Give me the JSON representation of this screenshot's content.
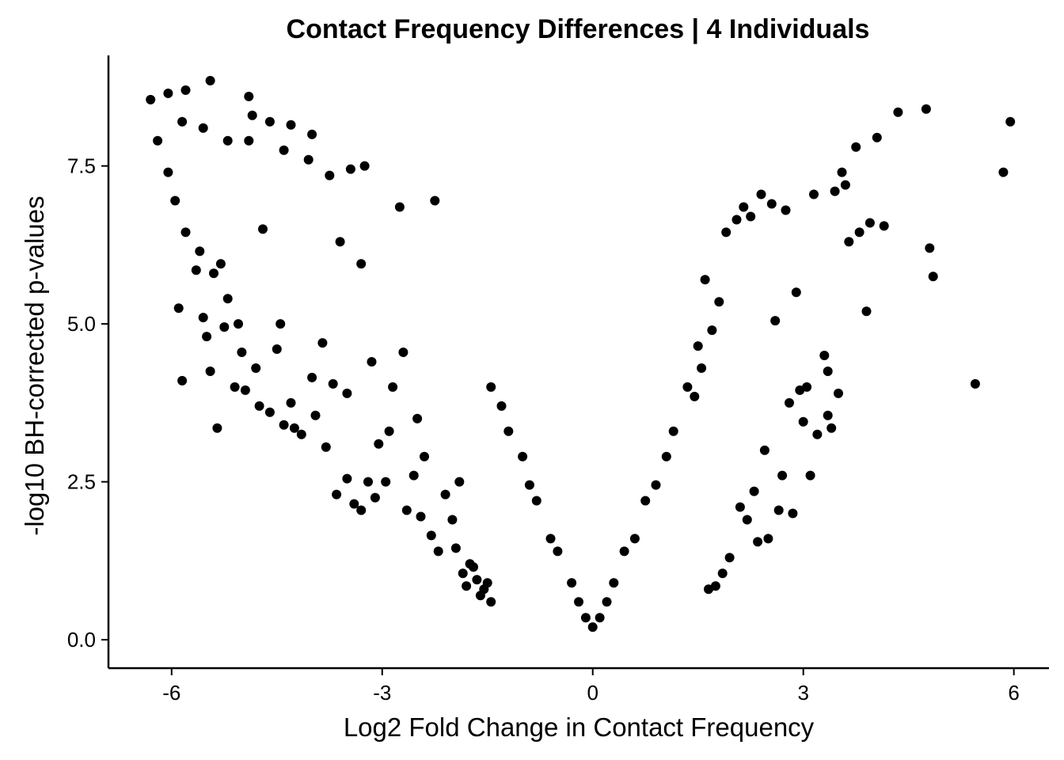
{
  "chart_data": {
    "type": "scatter",
    "title": "Contact Frequency Differences | 4 Individuals",
    "xlabel": "Log2 Fold Change in Contact Frequency",
    "ylabel": "-log10 BH-corrected p-values",
    "xlim": [
      -6.9,
      6.5
    ],
    "ylim": [
      -0.45,
      9.25
    ],
    "x_ticks": [
      {
        "value": -6,
        "label": "-6"
      },
      {
        "value": -3,
        "label": "-3"
      },
      {
        "value": 0,
        "label": "0"
      },
      {
        "value": 3,
        "label": "3"
      },
      {
        "value": 6,
        "label": "6"
      }
    ],
    "y_ticks": [
      {
        "value": 0,
        "label": "0.0"
      },
      {
        "value": 2.5,
        "label": "2.5"
      },
      {
        "value": 5,
        "label": "5.0"
      },
      {
        "value": 7.5,
        "label": "7.5"
      }
    ],
    "point_color": "#000000",
    "grid": false,
    "legend": "none",
    "series": [
      {
        "x": [
          -6.3,
          -6.05,
          -5.8,
          -5.45,
          -6.2,
          -5.85,
          -5.55,
          -5.2,
          -4.9,
          -4.85,
          -4.6,
          -4.3,
          -4.0,
          -6.05,
          -5.95,
          -5.8,
          -5.6,
          -5.65,
          -5.4,
          -5.3,
          -5.9,
          -5.55,
          -5.25,
          -5.05,
          -5.45,
          -5.85,
          -5.35,
          -5.1,
          -4.95,
          -5.5,
          -4.75,
          -4.4,
          -4.15,
          -3.8,
          -3.5,
          -3.2,
          -4.6,
          -4.3,
          -3.65,
          -3.3,
          -3.4,
          -3.1,
          -2.65,
          -2.45,
          -2.95,
          -2.3,
          -1.75,
          -1.85,
          -1.65,
          -2.2,
          -1.55,
          -1.95,
          -1.7,
          -5.0,
          -4.5,
          -4.0,
          -3.7,
          -3.5,
          -3.95,
          -4.25,
          -4.8,
          -5.2,
          -4.45,
          -3.85,
          -4.7,
          -3.3,
          -3.6,
          -2.7,
          -2.5,
          -2.85,
          -3.15,
          -2.1,
          -1.9,
          -2.4,
          -2.9,
          -3.05,
          -2.55,
          -1.6,
          -1.45,
          -2.0,
          -1.8,
          -1.5,
          -4.05,
          -3.25,
          -3.75,
          -2.75,
          -4.9,
          -4.4,
          -3.45,
          -2.25,
          4.35,
          4.75,
          5.95,
          5.85,
          5.45,
          4.8,
          4.85,
          3.55,
          3.75,
          4.05,
          3.6,
          3.95,
          4.15,
          3.8,
          3.65,
          3.9,
          3.3,
          3.35,
          3.05,
          3.1,
          2.95,
          3.0,
          2.8,
          2.85,
          2.65,
          2.7,
          3.4,
          3.2,
          3.35,
          3.5,
          2.9,
          2.6,
          2.45,
          2.3,
          2.1,
          2.2,
          2.5,
          2.35,
          1.95,
          1.85,
          1.75,
          1.65,
          2.4,
          2.15,
          2.55,
          2.05,
          2.25,
          1.9,
          2.75,
          3.15,
          3.45,
          1.55,
          1.5,
          1.7,
          1.8,
          1.6,
          -0.3,
          -0.2,
          -0.1,
          0.0,
          0.1,
          0.2,
          0.3,
          -0.6,
          0.6,
          -0.9,
          0.9,
          -1.2,
          1.15,
          -1.45,
          1.35,
          -1.3,
          1.45,
          -1.0,
          1.05,
          -0.8,
          0.75,
          -0.5,
          0.45
        ],
        "y": [
          8.55,
          8.65,
          8.7,
          8.85,
          7.9,
          8.2,
          8.1,
          7.9,
          8.6,
          8.3,
          8.2,
          8.15,
          8.0,
          7.4,
          6.95,
          6.45,
          6.15,
          5.85,
          5.8,
          5.95,
          5.25,
          5.1,
          4.95,
          5.0,
          4.25,
          4.1,
          3.35,
          4.0,
          3.95,
          4.8,
          3.7,
          3.4,
          3.25,
          3.05,
          2.55,
          2.5,
          3.6,
          3.75,
          2.3,
          2.05,
          2.15,
          2.25,
          2.05,
          1.95,
          2.5,
          1.65,
          1.2,
          1.05,
          0.95,
          1.4,
          0.8,
          1.45,
          1.15,
          4.55,
          4.6,
          4.15,
          4.05,
          3.9,
          3.55,
          3.35,
          4.3,
          5.4,
          5.0,
          4.7,
          6.5,
          5.95,
          6.3,
          4.55,
          3.5,
          4.0,
          4.4,
          2.3,
          2.5,
          2.9,
          3.3,
          3.1,
          2.6,
          0.7,
          0.6,
          1.9,
          0.85,
          0.9,
          7.6,
          7.5,
          7.35,
          6.85,
          7.9,
          7.75,
          7.45,
          6.95,
          8.35,
          8.4,
          8.2,
          7.4,
          4.05,
          6.2,
          5.75,
          7.4,
          7.8,
          7.95,
          7.2,
          6.6,
          6.55,
          6.45,
          6.3,
          5.2,
          4.5,
          4.25,
          4.0,
          2.6,
          3.95,
          3.45,
          3.75,
          2.0,
          2.05,
          2.6,
          3.35,
          3.25,
          3.55,
          3.9,
          5.5,
          5.05,
          3.0,
          2.35,
          2.1,
          1.9,
          1.6,
          1.55,
          1.3,
          1.05,
          0.85,
          0.8,
          7.05,
          6.85,
          6.9,
          6.65,
          6.7,
          6.45,
          6.8,
          7.05,
          7.1,
          4.3,
          4.65,
          4.9,
          5.35,
          5.7,
          0.9,
          0.6,
          0.35,
          0.2,
          0.35,
          0.6,
          0.9,
          1.6,
          1.6,
          2.45,
          2.45,
          3.3,
          3.3,
          4.0,
          4.0,
          3.7,
          3.85,
          2.9,
          2.9,
          2.2,
          2.2,
          1.4,
          1.4
        ]
      }
    ]
  }
}
